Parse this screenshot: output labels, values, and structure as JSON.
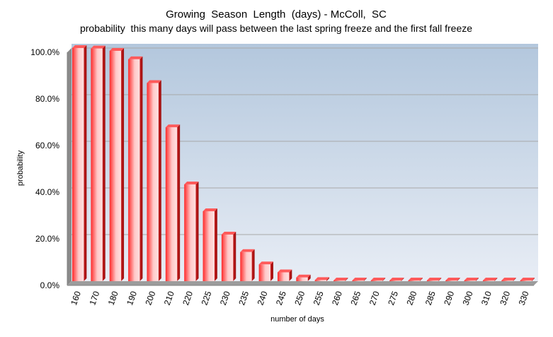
{
  "chart_data": {
    "type": "bar",
    "title": "Growing  Season  Length  (days) - McColl,  SC",
    "subtitle": "probability  this many days will pass between the last spring freeze and the first fall freeze",
    "xlabel": "number of days",
    "ylabel": "probability",
    "ylim": [
      0,
      100
    ],
    "yticks": [
      "0.0%",
      "20.0%",
      "40.0%",
      "60.0%",
      "80.0%",
      "100.0%"
    ],
    "grid": true,
    "legend": "none",
    "categories": [
      "160",
      "170",
      "180",
      "190",
      "200",
      "210",
      "220",
      "225",
      "230",
      "235",
      "240",
      "245",
      "250",
      "255",
      "260",
      "265",
      "270",
      "275",
      "280",
      "285",
      "290",
      "300",
      "310",
      "320",
      "330"
    ],
    "values": [
      100,
      99.8,
      98.8,
      95.2,
      85,
      66,
      41.5,
      30,
      20,
      12.5,
      7.2,
      3.8,
      1.6,
      0.5,
      0.2,
      0.1,
      0.1,
      0.1,
      0.1,
      0.1,
      0.1,
      0.1,
      0.1,
      0.1,
      0.1
    ],
    "colors": {
      "bar": "#ff2a2a",
      "bar_light": "#ffd6d6",
      "plot_top": "#b3c7dd",
      "plot_bottom": "#e8edf5"
    }
  }
}
